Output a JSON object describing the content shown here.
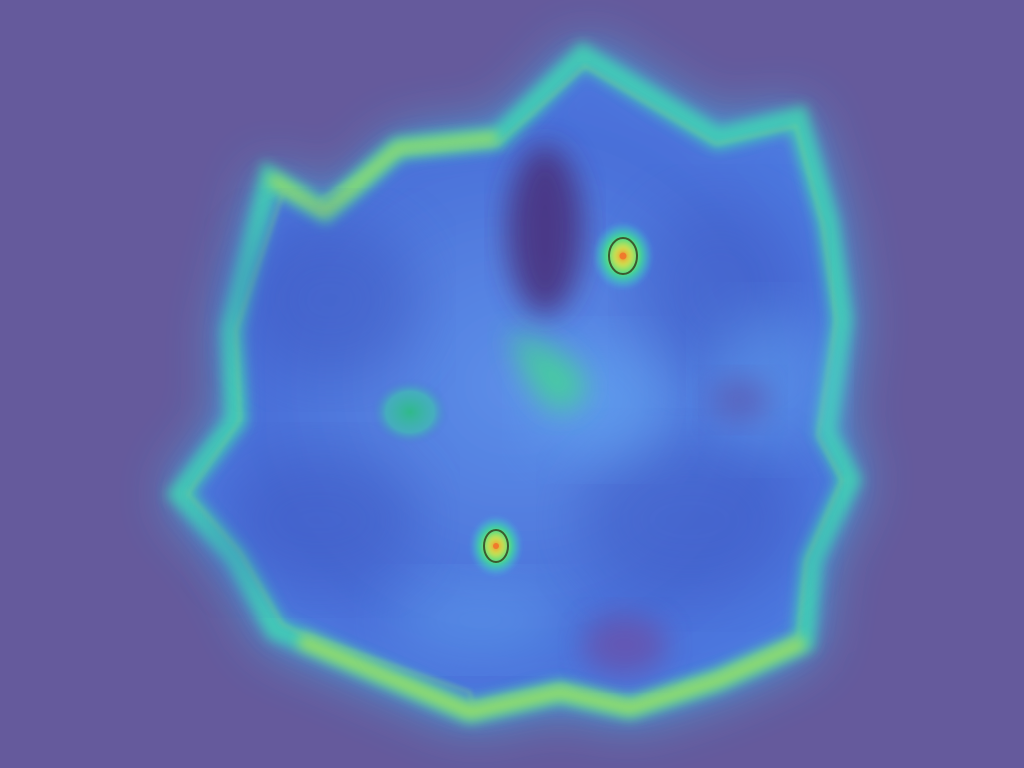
{
  "image": {
    "kind": "heatmap-overlay",
    "palette": {
      "background": "#655a9c",
      "base_blue": "#4a6fd8",
      "light_blue": "#63a8f2",
      "deep_purple": "#5a3f8c",
      "cyan": "#36d7e6",
      "green": "#3fdc8a",
      "yellow": "#d6e34a",
      "orange": "#f07a2c",
      "contour_line": "#3c5a2e"
    }
  }
}
